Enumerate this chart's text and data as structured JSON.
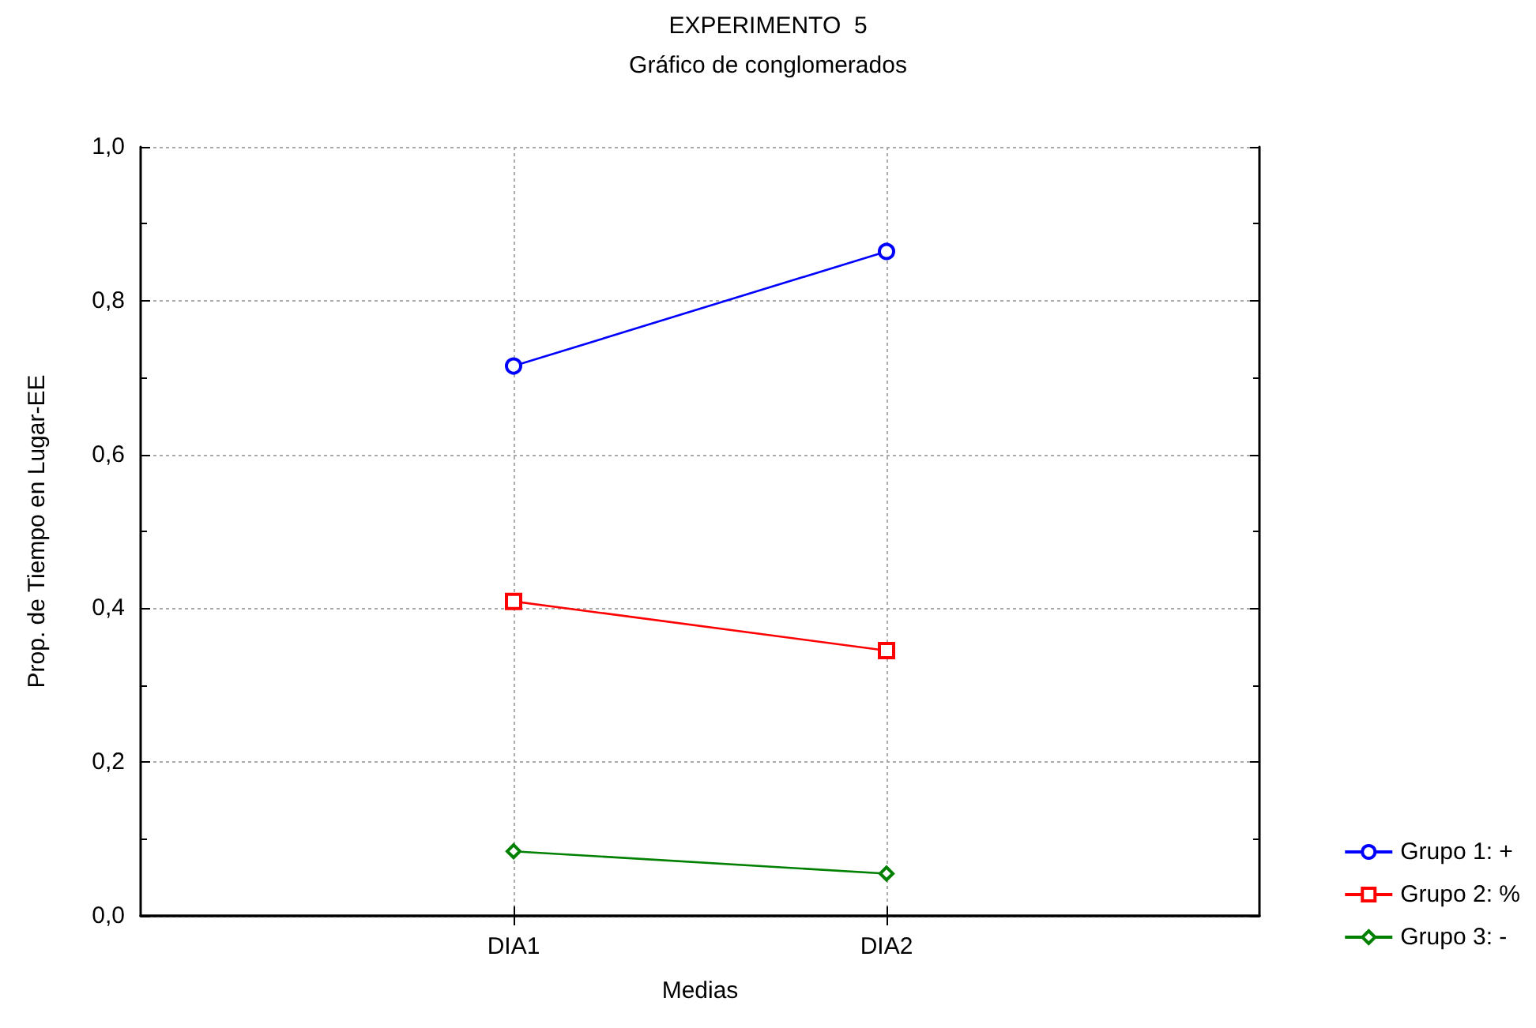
{
  "chart_data": {
    "type": "line",
    "title": "EXPERIMENTO  5",
    "subtitle": "Gráfico de conglomerados",
    "xlabel": "Medias",
    "ylabel": "Prop. de Tiempo en Lugar-EE",
    "categories": [
      "DIA1",
      "DIA2"
    ],
    "series": [
      {
        "name": "Grupo 1: +",
        "color": "#0000ff",
        "marker": "circle",
        "values": [
          0.715,
          0.864
        ]
      },
      {
        "name": "Grupo 2: %",
        "color": "#ff0000",
        "marker": "square",
        "values": [
          0.409,
          0.345
        ]
      },
      {
        "name": "Grupo 3: -",
        "color": "#008000",
        "marker": "diamond",
        "values": [
          0.084,
          0.055
        ]
      }
    ],
    "ylim": [
      0,
      1
    ],
    "yticks": [
      {
        "value": 0,
        "label": "0,0"
      },
      {
        "value": 0.2,
        "label": "0,2"
      },
      {
        "value": 0.4,
        "label": "0,4"
      },
      {
        "value": 0.6,
        "label": "0,6"
      },
      {
        "value": 0.8,
        "label": "0,8"
      },
      {
        "value": 1,
        "label": "1,0"
      }
    ],
    "grid": true,
    "legend": "bottom right",
    "line_style": "solid"
  }
}
